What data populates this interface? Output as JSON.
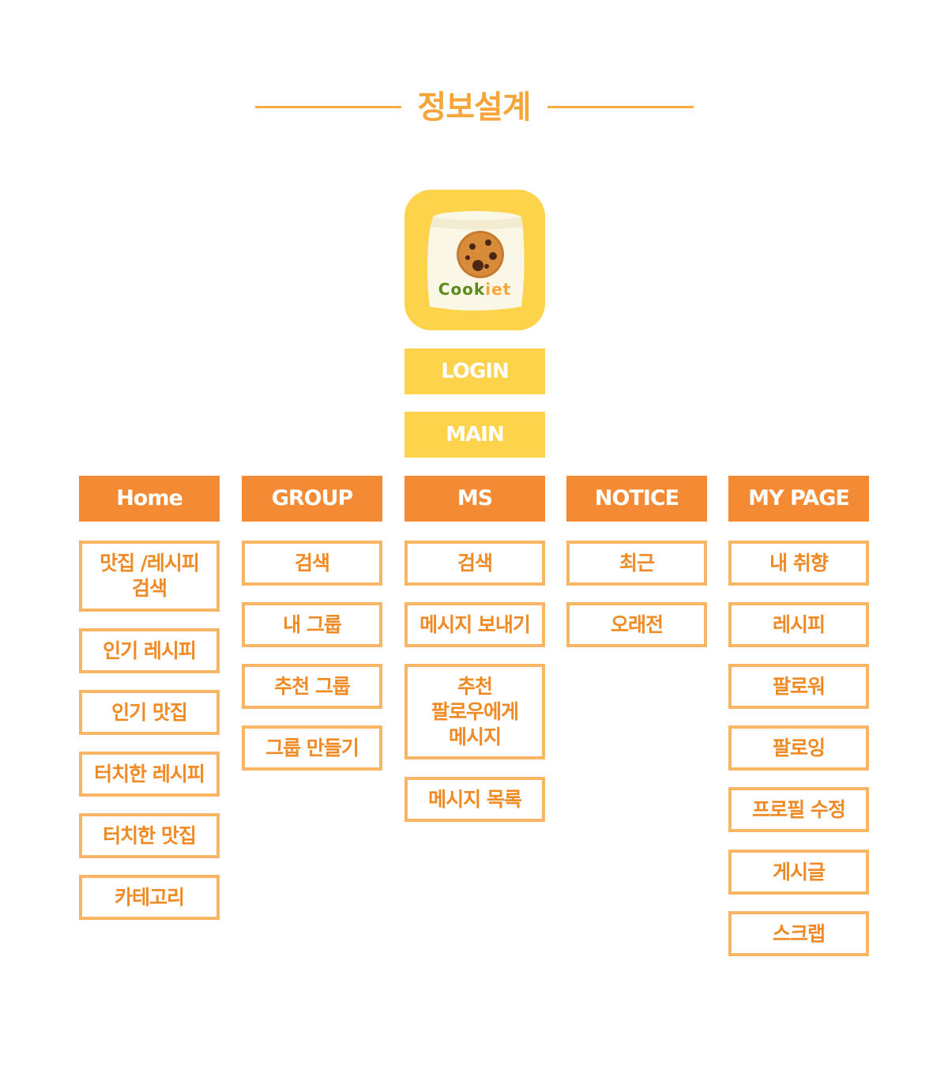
{
  "title": "정보설계",
  "logo": {
    "brand_part1": "Cook",
    "brand_part2": "iet"
  },
  "flow": {
    "login": "LOGIN",
    "main": "MAIN"
  },
  "columns": [
    {
      "header": "Home",
      "items": [
        "맛집 /레시피\n검색",
        "인기 레시피",
        "인기 맛집",
        "터치한 레시피",
        "터치한 맛집",
        "카테고리"
      ]
    },
    {
      "header": "GROUP",
      "items": [
        "검색",
        "내 그룹",
        "추천 그룹",
        "그룹 만들기"
      ]
    },
    {
      "header": "MS",
      "items": [
        "검색",
        "메시지 보내기",
        "추천\n팔로우에게\n메시지",
        "메시지 목록"
      ]
    },
    {
      "header": "NOTICE",
      "items": [
        "최근",
        "오래전"
      ]
    },
    {
      "header": "MY PAGE",
      "items": [
        "내 취향",
        "레시피",
        "팔로워",
        "팔로잉",
        "프로필 수정",
        "게시글",
        "스크랩"
      ]
    }
  ],
  "colors": {
    "accent": "#f5a53a",
    "header_bg": "#f58a35",
    "flow_bg": "#fcd34a",
    "node_border": "#f8b563",
    "node_text": "#f08a25"
  }
}
